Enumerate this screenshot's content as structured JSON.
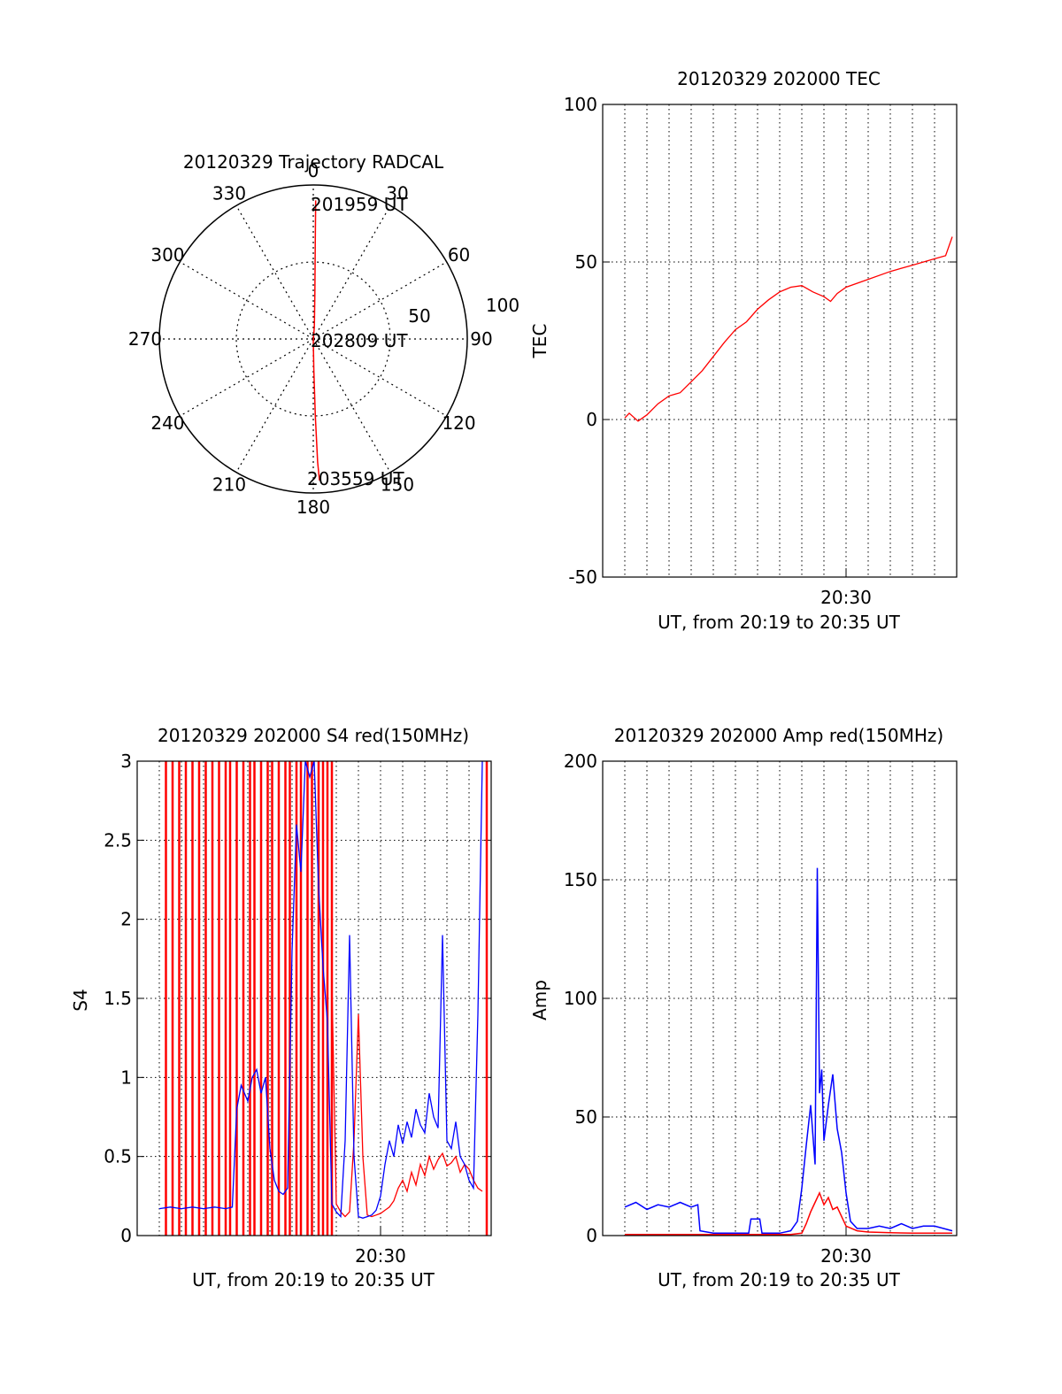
{
  "colors": {
    "red": "#ff0000",
    "blue": "#0000ff",
    "axis": "#000000"
  },
  "chart_data": [
    {
      "id": "trajectory",
      "type": "polar",
      "title": "20120329 Trajectory RADCAL",
      "angle_labels": [
        "0",
        "30",
        "60",
        "90",
        "120",
        "150",
        "180",
        "210",
        "240",
        "270",
        "300",
        "330"
      ],
      "radius_labels": [
        "50",
        "100"
      ],
      "rlim": [
        0,
        100
      ],
      "point_labels": {
        "start": "201959 UT",
        "mid": "202809 UT",
        "end": "203559 UT"
      },
      "trajectory": [
        {
          "az": 1.0,
          "zen": 90
        },
        {
          "az": 1.2,
          "zen": 60
        },
        {
          "az": 2.0,
          "zen": 30
        },
        {
          "az": 5.0,
          "zen": 8
        },
        {
          "az": 180,
          "zen": 1
        },
        {
          "az": 179.0,
          "zen": 20
        },
        {
          "az": 178.5,
          "zen": 50
        },
        {
          "az": 178.0,
          "zen": 80
        },
        {
          "az": 177.5,
          "zen": 92
        }
      ]
    },
    {
      "id": "tec",
      "type": "line",
      "title": "20120329 202000 TEC",
      "xlabel": "UT, from 20:19 to 20:35 UT",
      "ylabel": "TEC",
      "xlim": [
        19,
        35
      ],
      "ylim": [
        -50,
        100
      ],
      "yticks": [
        "-50",
        "0",
        "50",
        "100"
      ],
      "xtick_label": "20:30",
      "xtick_value": 30,
      "series": [
        {
          "name": "TEC",
          "color": "red",
          "x": [
            20.0,
            20.2,
            20.6,
            21.0,
            21.5,
            22.0,
            22.5,
            23.0,
            23.5,
            24.0,
            24.5,
            25.0,
            25.5,
            26.0,
            26.5,
            27.0,
            27.5,
            28.0,
            28.5,
            29.0,
            29.3,
            29.6,
            30.0,
            31.0,
            32.0,
            33.0,
            34.0,
            34.5,
            34.8
          ],
          "y": [
            0.5,
            2.0,
            -0.5,
            1.5,
            5.0,
            7.5,
            8.5,
            12.0,
            15.5,
            20.0,
            24.5,
            28.5,
            31.0,
            35.0,
            38.0,
            40.5,
            42.0,
            42.5,
            40.5,
            39.0,
            37.5,
            40.0,
            42.0,
            44.5,
            47.0,
            49.0,
            51.0,
            52.0,
            58.0
          ]
        }
      ]
    },
    {
      "id": "s4",
      "type": "line",
      "title": "20120329 202000 S4 red(150MHz)",
      "xlabel": "UT, from 20:19 to 20:35 UT",
      "ylabel": "S4",
      "xlim": [
        19,
        35
      ],
      "ylim": [
        0,
        3
      ],
      "yticks": [
        "0",
        "0.5",
        "1",
        "1.5",
        "2",
        "2.5",
        "3"
      ],
      "xtick_label": "20:30",
      "xtick_value": 30,
      "spike_x": [
        20.3,
        20.6,
        20.9,
        21.2,
        21.5,
        21.8,
        22.1,
        22.4,
        22.7,
        23.0,
        23.2,
        23.5,
        23.8,
        24.1,
        24.3,
        24.6,
        24.9,
        25.1,
        25.4,
        25.7,
        25.9,
        26.2,
        26.4,
        26.7,
        26.9,
        27.2,
        27.4,
        27.6,
        27.8,
        34.8
      ],
      "series": [
        {
          "name": "red(150MHz)",
          "color": "red",
          "x": [
            27.8,
            28.0,
            28.2,
            28.4,
            28.6,
            28.8,
            29.0,
            29.2,
            29.4,
            29.6,
            29.8,
            30.0,
            30.2,
            30.4,
            30.6,
            30.8,
            31.0,
            31.2,
            31.4,
            31.6,
            31.8,
            32.0,
            32.2,
            32.4,
            32.6,
            32.8,
            33.0,
            33.2,
            33.4,
            33.6,
            33.8,
            34.0,
            34.2,
            34.4,
            34.6
          ],
          "y": [
            1.6,
            0.2,
            0.15,
            0.12,
            0.15,
            0.6,
            1.4,
            0.5,
            0.13,
            0.12,
            0.13,
            0.14,
            0.16,
            0.18,
            0.22,
            0.3,
            0.35,
            0.28,
            0.4,
            0.32,
            0.45,
            0.38,
            0.5,
            0.42,
            0.48,
            0.52,
            0.44,
            0.46,
            0.5,
            0.4,
            0.45,
            0.42,
            0.35,
            0.3,
            0.28
          ]
        },
        {
          "name": "blue",
          "color": "blue",
          "x": [
            20.0,
            20.5,
            21.0,
            21.5,
            22.0,
            22.5,
            23.0,
            23.3,
            23.5,
            23.7,
            24.0,
            24.2,
            24.4,
            24.6,
            24.8,
            25.0,
            25.2,
            25.4,
            25.6,
            25.8,
            26.0,
            26.2,
            26.4,
            26.6,
            26.8,
            27.0,
            27.2,
            27.4,
            27.6,
            27.8,
            28.0,
            28.2,
            28.4,
            28.6,
            28.8,
            29.0,
            29.2,
            29.4,
            29.6,
            29.8,
            30.0,
            30.2,
            30.4,
            30.6,
            30.8,
            31.0,
            31.2,
            31.4,
            31.6,
            31.8,
            32.0,
            32.2,
            32.4,
            32.6,
            32.8,
            33.0,
            33.2,
            33.4,
            33.6,
            33.8,
            34.0,
            34.2,
            34.4,
            34.6
          ],
          "y": [
            0.17,
            0.18,
            0.17,
            0.18,
            0.17,
            0.18,
            0.17,
            0.18,
            0.8,
            0.95,
            0.85,
            1.0,
            1.05,
            0.9,
            1.0,
            0.55,
            0.35,
            0.28,
            0.26,
            0.3,
            1.8,
            2.6,
            2.3,
            3.0,
            2.9,
            3.0,
            2.2,
            1.7,
            1.35,
            0.2,
            0.15,
            0.12,
            0.6,
            1.9,
            0.5,
            0.12,
            0.11,
            0.12,
            0.13,
            0.16,
            0.25,
            0.45,
            0.6,
            0.5,
            0.7,
            0.58,
            0.72,
            0.62,
            0.8,
            0.7,
            0.65,
            0.9,
            0.75,
            0.68,
            1.9,
            0.6,
            0.55,
            0.72,
            0.5,
            0.45,
            0.35,
            0.3,
            1.4,
            3.0
          ]
        }
      ]
    },
    {
      "id": "amp",
      "type": "line",
      "title": "20120329 202000 Amp red(150MHz)",
      "xlabel": "UT, from 20:19 to 20:35 UT",
      "ylabel": "Amp",
      "xlim": [
        19,
        35
      ],
      "ylim": [
        0,
        200
      ],
      "yticks": [
        "0",
        "50",
        "100",
        "150",
        "200"
      ],
      "xtick_label": "20:30",
      "xtick_value": 30,
      "series": [
        {
          "name": "red(150MHz)",
          "color": "red",
          "x": [
            20.0,
            23.5,
            26.0,
            27.5,
            28.0,
            28.2,
            28.4,
            28.6,
            28.8,
            29.0,
            29.2,
            29.4,
            29.6,
            29.8,
            30.0,
            30.5,
            31.0,
            32.0,
            33.0,
            34.0,
            34.8
          ],
          "y": [
            0.5,
            0.5,
            0.5,
            0.5,
            1.0,
            5,
            10,
            14,
            18,
            13,
            16,
            11,
            12,
            8,
            4,
            2,
            1.5,
            1.2,
            1.0,
            1.0,
            1.0
          ]
        },
        {
          "name": "blue",
          "color": "blue",
          "x": [
            20.0,
            20.5,
            21.0,
            21.5,
            22.0,
            22.5,
            23.0,
            23.3,
            23.4,
            24.0,
            25.0,
            25.6,
            25.7,
            26.1,
            26.2,
            27.0,
            27.5,
            27.8,
            28.0,
            28.2,
            28.4,
            28.6,
            28.7,
            28.8,
            28.9,
            29.0,
            29.2,
            29.4,
            29.6,
            29.8,
            30.0,
            30.2,
            30.5,
            31.0,
            31.5,
            32.0,
            32.5,
            33.0,
            33.5,
            34.0,
            34.8
          ],
          "y": [
            12,
            14,
            11,
            13,
            12,
            14,
            12,
            13,
            2,
            1,
            1,
            1,
            7,
            7,
            1,
            1,
            2,
            6,
            20,
            38,
            55,
            30,
            155,
            60,
            70,
            40,
            55,
            68,
            45,
            35,
            18,
            6,
            3,
            3,
            4,
            3,
            5,
            3,
            4,
            4,
            2
          ]
        }
      ]
    }
  ]
}
